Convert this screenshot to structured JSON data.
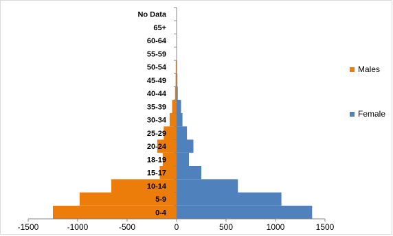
{
  "chart_data": {
    "type": "bar",
    "orientation": "horizontal",
    "layout": "population-pyramid",
    "categories": [
      "0-4",
      "5-9",
      "10-14",
      "15-17",
      "18-19",
      "20-24",
      "25-29",
      "30-34",
      "35-39",
      "40-44",
      "45-49",
      "50-54",
      "55-59",
      "60-64",
      "65+",
      "No Data"
    ],
    "series": [
      {
        "name": "Males",
        "color": "#ED7D0A",
        "values": [
          -1250,
          -980,
          -660,
          -170,
          -140,
          -195,
          -130,
          -70,
          -45,
          -15,
          -10,
          -8,
          -3,
          -2,
          -2,
          0
        ]
      },
      {
        "name": "Female",
        "color": "#4F81BD",
        "values": [
          1370,
          1060,
          620,
          250,
          125,
          170,
          105,
          60,
          45,
          12,
          8,
          5,
          3,
          2,
          2,
          0
        ]
      }
    ],
    "xlim": [
      -1500,
      1500
    ],
    "xticks": [
      "-1500",
      "-1000",
      "-500",
      "0",
      "500",
      "1000",
      "1500"
    ],
    "xtick_values": [
      -1500,
      -1000,
      -500,
      0,
      500,
      1000,
      1500
    ],
    "title": "",
    "xlabel": "",
    "ylabel": "",
    "grid": false,
    "legend_position": "right"
  }
}
